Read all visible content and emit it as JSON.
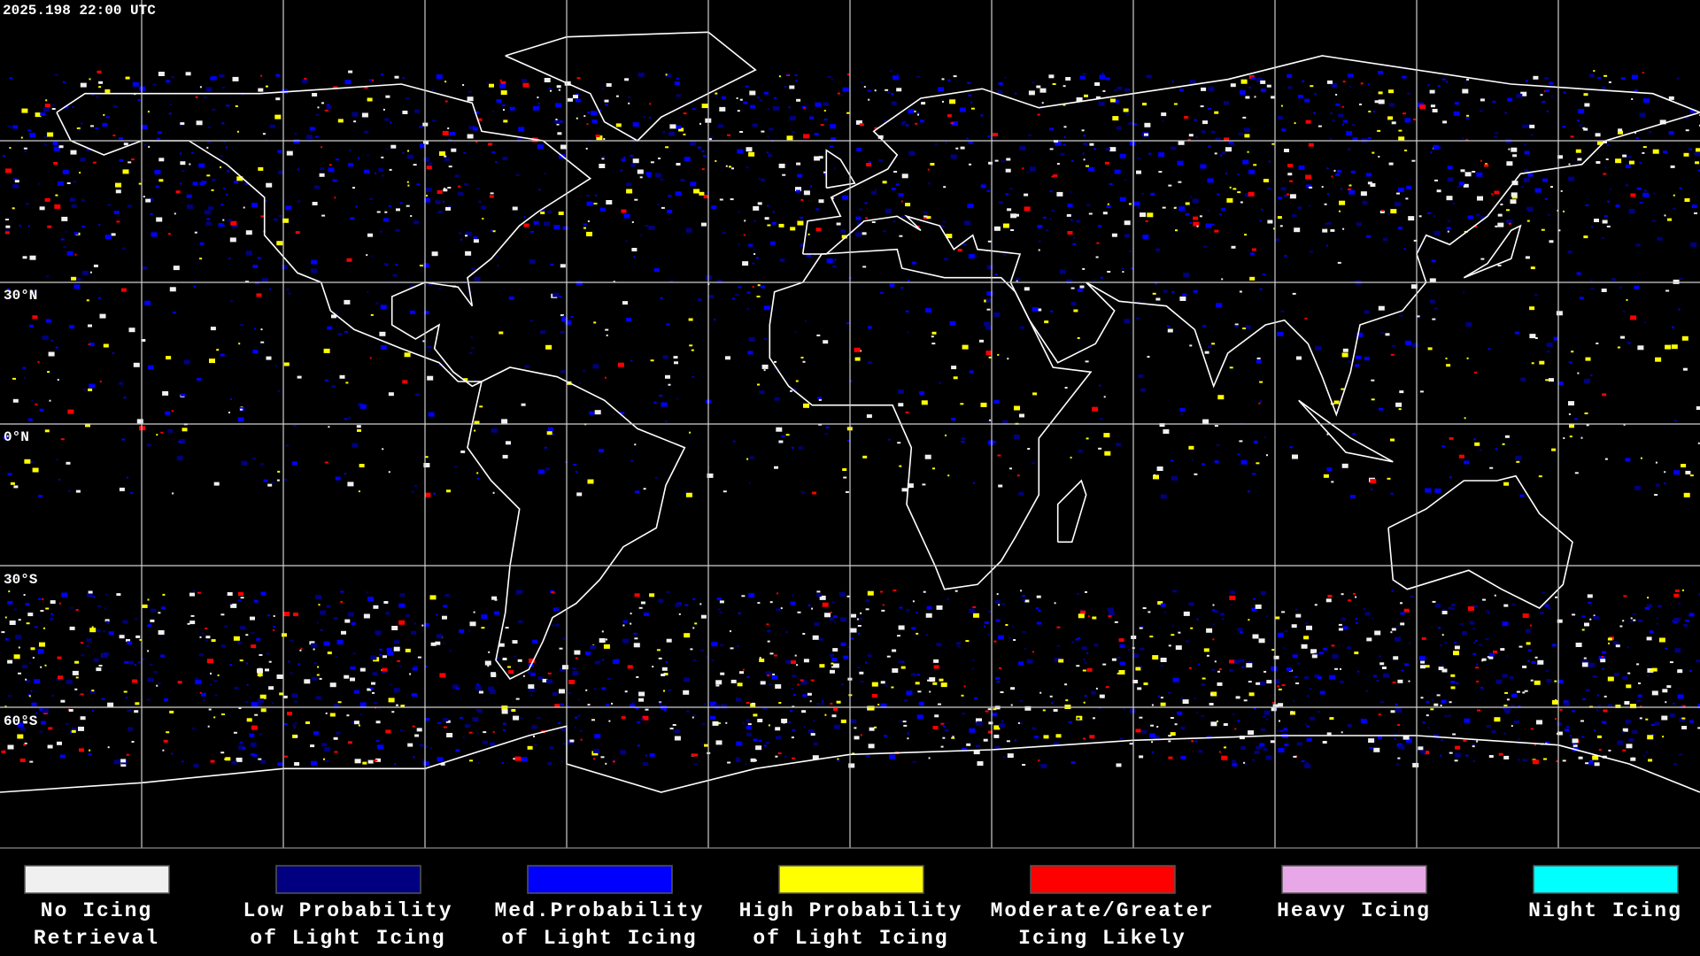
{
  "timestamp": "2025.198 22:00 UTC",
  "lat_labels": [
    "30°N",
    "0°N",
    "30°S",
    "60°S"
  ],
  "legend": [
    {
      "label_lines": [
        "No Icing",
        "Retrieval"
      ],
      "color": "#f0f0f0"
    },
    {
      "label_lines": [
        "Low Probability",
        "of Light Icing"
      ],
      "color": "#000080"
    },
    {
      "label_lines": [
        "Med.Probability",
        "of Light Icing"
      ],
      "color": "#0000ff"
    },
    {
      "label_lines": [
        "High Probability",
        "of Light Icing"
      ],
      "color": "#ffff00"
    },
    {
      "label_lines": [
        "Moderate/Greater",
        "Icing Likely"
      ],
      "color": "#ff0000"
    },
    {
      "label_lines": [
        "Heavy Icing"
      ],
      "color": "#e8a8e8"
    },
    {
      "label_lines": [
        "Night Icing"
      ],
      "color": "#00ffff"
    }
  ]
}
